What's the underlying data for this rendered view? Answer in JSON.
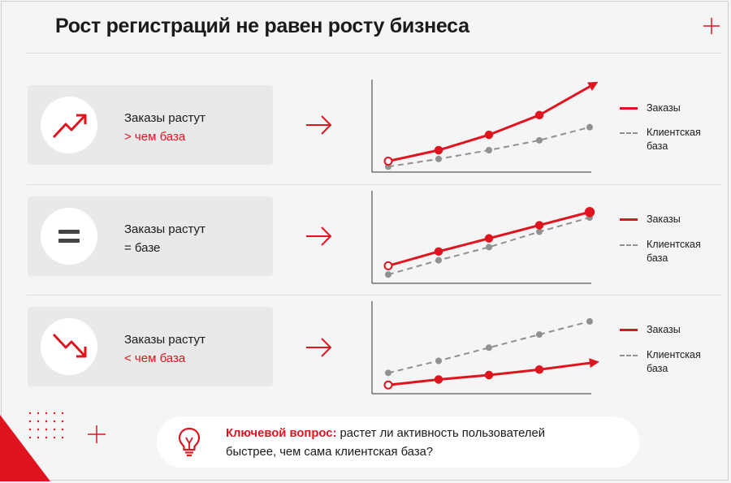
{
  "title": "Рост регистраций не равен росту бизнеса",
  "colors": {
    "accent": "#e0141e",
    "secondary": "#909090",
    "card": "#e9e9e9"
  },
  "rows": [
    {
      "icon": "trend-up-icon",
      "line1": "Заказы растут",
      "line2": "> чем база",
      "line2_color": "red"
    },
    {
      "icon": "equals-icon",
      "line1": "Заказы растут",
      "line2": "= базе",
      "line2_color": "dark"
    },
    {
      "icon": "trend-down-icon",
      "line1": "Заказы растут",
      "line2": "< чем база",
      "line2_color": "red"
    }
  ],
  "legend": {
    "orders": "Заказы",
    "base_line1": "Клиентская",
    "base_line2": "база"
  },
  "chart_data": [
    {
      "type": "line",
      "x": [
        1,
        2,
        3,
        4,
        5
      ],
      "series": [
        {
          "name": "Заказы",
          "values": [
            1.0,
            2.0,
            3.4,
            5.2,
            7.8
          ]
        },
        {
          "name": "Клиентская база",
          "values": [
            0.5,
            1.2,
            2.0,
            2.9,
            4.1
          ]
        }
      ],
      "ylim": [
        0,
        8
      ],
      "xlabel": "",
      "ylabel": "",
      "grid": false,
      "legend": "right"
    },
    {
      "type": "line",
      "x": [
        1,
        2,
        3,
        4,
        5
      ],
      "series": [
        {
          "name": "Заказы",
          "values": [
            1.6,
            2.9,
            4.1,
            5.3,
            6.5
          ]
        },
        {
          "name": "Клиентская база",
          "values": [
            0.8,
            2.1,
            3.3,
            4.7,
            6.0
          ]
        }
      ],
      "ylim": [
        0,
        8
      ],
      "xlabel": "",
      "ylabel": "",
      "grid": false,
      "legend": "right"
    },
    {
      "type": "line",
      "x": [
        1,
        2,
        3,
        4,
        5
      ],
      "series": [
        {
          "name": "Заказы",
          "values": [
            0.8,
            1.3,
            1.7,
            2.2,
            2.8
          ]
        },
        {
          "name": "Клиентская база",
          "values": [
            1.9,
            3.0,
            4.2,
            5.4,
            6.6
          ]
        }
      ],
      "ylim": [
        0,
        8
      ],
      "xlabel": "",
      "ylabel": "",
      "grid": false,
      "legend": "right"
    }
  ],
  "footer": {
    "icon": "lightbulb-icon",
    "key_label": "Ключевой вопрос:",
    "line1_rest": " растет ли активность пользователей",
    "line2": "быстрее, чем сама клиентская база?"
  }
}
